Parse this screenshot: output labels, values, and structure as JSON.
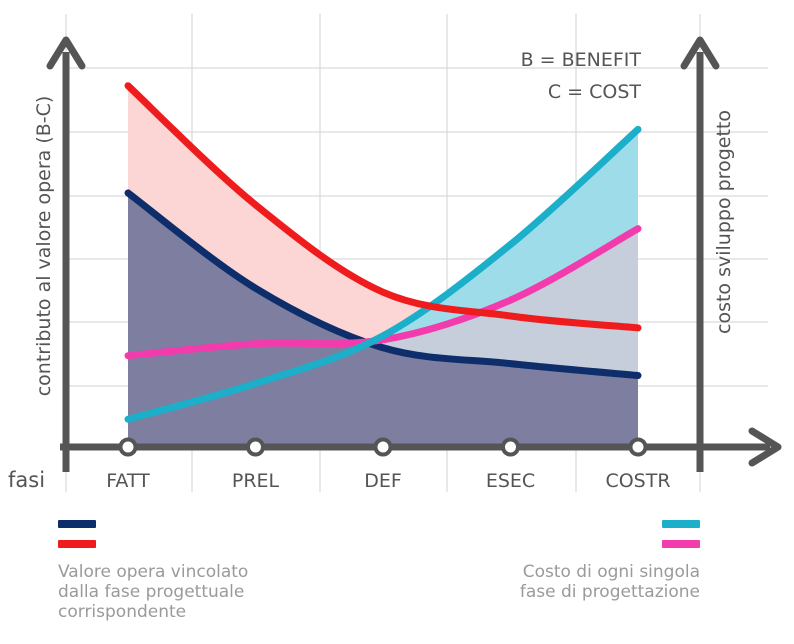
{
  "chart_data": {
    "type": "line",
    "title": "",
    "xlabel": "fasi",
    "ylabel_left": "contributo al valore opera (B-C)",
    "ylabel_right": "costo sviluppo progetto",
    "categories": [
      "FATT",
      "PREL",
      "DEF",
      "ESEC",
      "COSTR"
    ],
    "annotation": [
      "B = BENEFIT",
      "C = COST"
    ],
    "ylim": [
      0,
      100
    ],
    "grid": true,
    "series": [
      {
        "key": "red",
        "color": "#ee1c1c",
        "values": [
          91,
          61,
          39,
          33,
          30
        ]
      },
      {
        "key": "navy",
        "color": "#0e2d6b",
        "values": [
          64,
          40,
          25,
          21,
          18
        ]
      },
      {
        "key": "magenta",
        "color": "#f23cae",
        "values": [
          23,
          26,
          27,
          37,
          55
        ]
      },
      {
        "key": "cyan",
        "color": "#1bafc9",
        "values": [
          7,
          16,
          28,
          51,
          80
        ]
      }
    ],
    "fills": {
      "red_area": "#fcd5d5",
      "navy_area": "#7d7ea0",
      "cyan_area": "#9fdcea",
      "magenta_area": "#c9ccd8"
    },
    "legend": {
      "left_text": [
        "Valore opera vincolato",
        "dalla fase progettuale",
        "corrispondente"
      ],
      "left_colors": [
        "#0e2d6b",
        "#ee1c1c"
      ],
      "right_text": [
        "Costo di ogni singola",
        "fase di progettazione"
      ],
      "right_colors": [
        "#1bafc9",
        "#f23cae"
      ]
    },
    "axis_color": "#555555"
  }
}
